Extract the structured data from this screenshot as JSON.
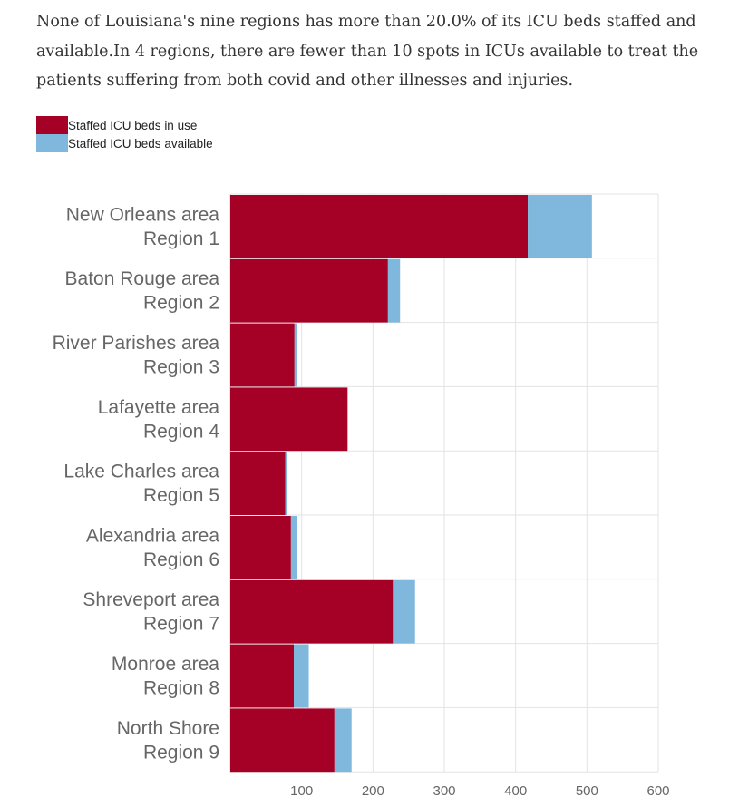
{
  "intro_text": "None of Louisiana's nine regions has more than 20.0% of its ICU beds staffed and available.In 4 regions, there are fewer than 10 spots in ICUs available to treat the patients suffering from both covid and other illnesses and injuries.",
  "colors": {
    "in_use": "#a50026",
    "available": "#7fb8dc",
    "grid": "#e3e3e3",
    "axis": "#cccccc"
  },
  "legend": [
    {
      "label": "Staffed ICU beds in use",
      "color": "#a50026"
    },
    {
      "label": "Staffed ICU beds available",
      "color": "#7fb8dc"
    }
  ],
  "chart_data": {
    "type": "bar",
    "orientation": "horizontal",
    "stacked": true,
    "categories": [
      [
        "New Orleans area",
        "Region 1"
      ],
      [
        "Baton Rouge area",
        "Region 2"
      ],
      [
        "River Parishes area",
        "Region 3"
      ],
      [
        "Lafayette area",
        "Region 4"
      ],
      [
        "Lake Charles area",
        "Region 5"
      ],
      [
        "Alexandria area",
        "Region 6"
      ],
      [
        "Shreveport area",
        "Region 7"
      ],
      [
        "Monroe area",
        "Region 8 "
      ],
      [
        "North Shore",
        "Region 9"
      ]
    ],
    "series": [
      {
        "name": "Staffed ICU beds in use",
        "values": [
          417,
          221,
          90,
          164,
          77,
          85,
          228,
          89,
          146
        ]
      },
      {
        "name": "Staffed ICU beds available",
        "values": [
          90,
          17,
          4,
          1,
          2,
          8,
          31,
          21,
          24
        ]
      }
    ],
    "xlim": [
      0,
      600
    ],
    "xticks": [
      100,
      200,
      300,
      400,
      500,
      600
    ],
    "grid": true,
    "legend_position": "top-left"
  }
}
